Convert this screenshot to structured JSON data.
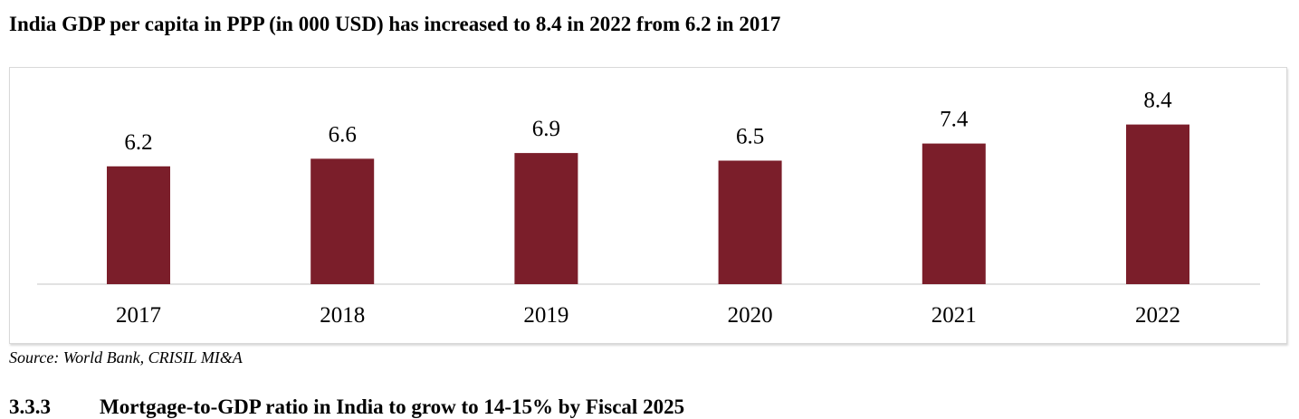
{
  "title": "India GDP per capita in PPP (in 000 USD) has increased to 8.4 in 2022 from 6.2 in 2017",
  "source": "Source: World Bank, CRISIL MI&A",
  "section": {
    "number": "3.3.3",
    "heading": "Mortgage-to-GDP ratio in India to grow to 14-15% by Fiscal 2025"
  },
  "colors": {
    "bar": "#7b1e2a",
    "axis": "#d9d9d9"
  },
  "chart_data": {
    "type": "bar",
    "title": "India GDP per capita in PPP (in 000 USD) has increased to 8.4 in 2022 from 6.2 in 2017",
    "xlabel": "",
    "ylabel": "",
    "categories": [
      "2017",
      "2018",
      "2019",
      "2020",
      "2021",
      "2022"
    ],
    "values": [
      6.2,
      6.6,
      6.9,
      6.5,
      7.4,
      8.4
    ],
    "value_labels": [
      "6.2",
      "6.6",
      "6.9",
      "6.5",
      "7.4",
      "8.4"
    ],
    "ylim": [
      0,
      9
    ],
    "grid": false,
    "legend": "none",
    "data_labels": true
  }
}
